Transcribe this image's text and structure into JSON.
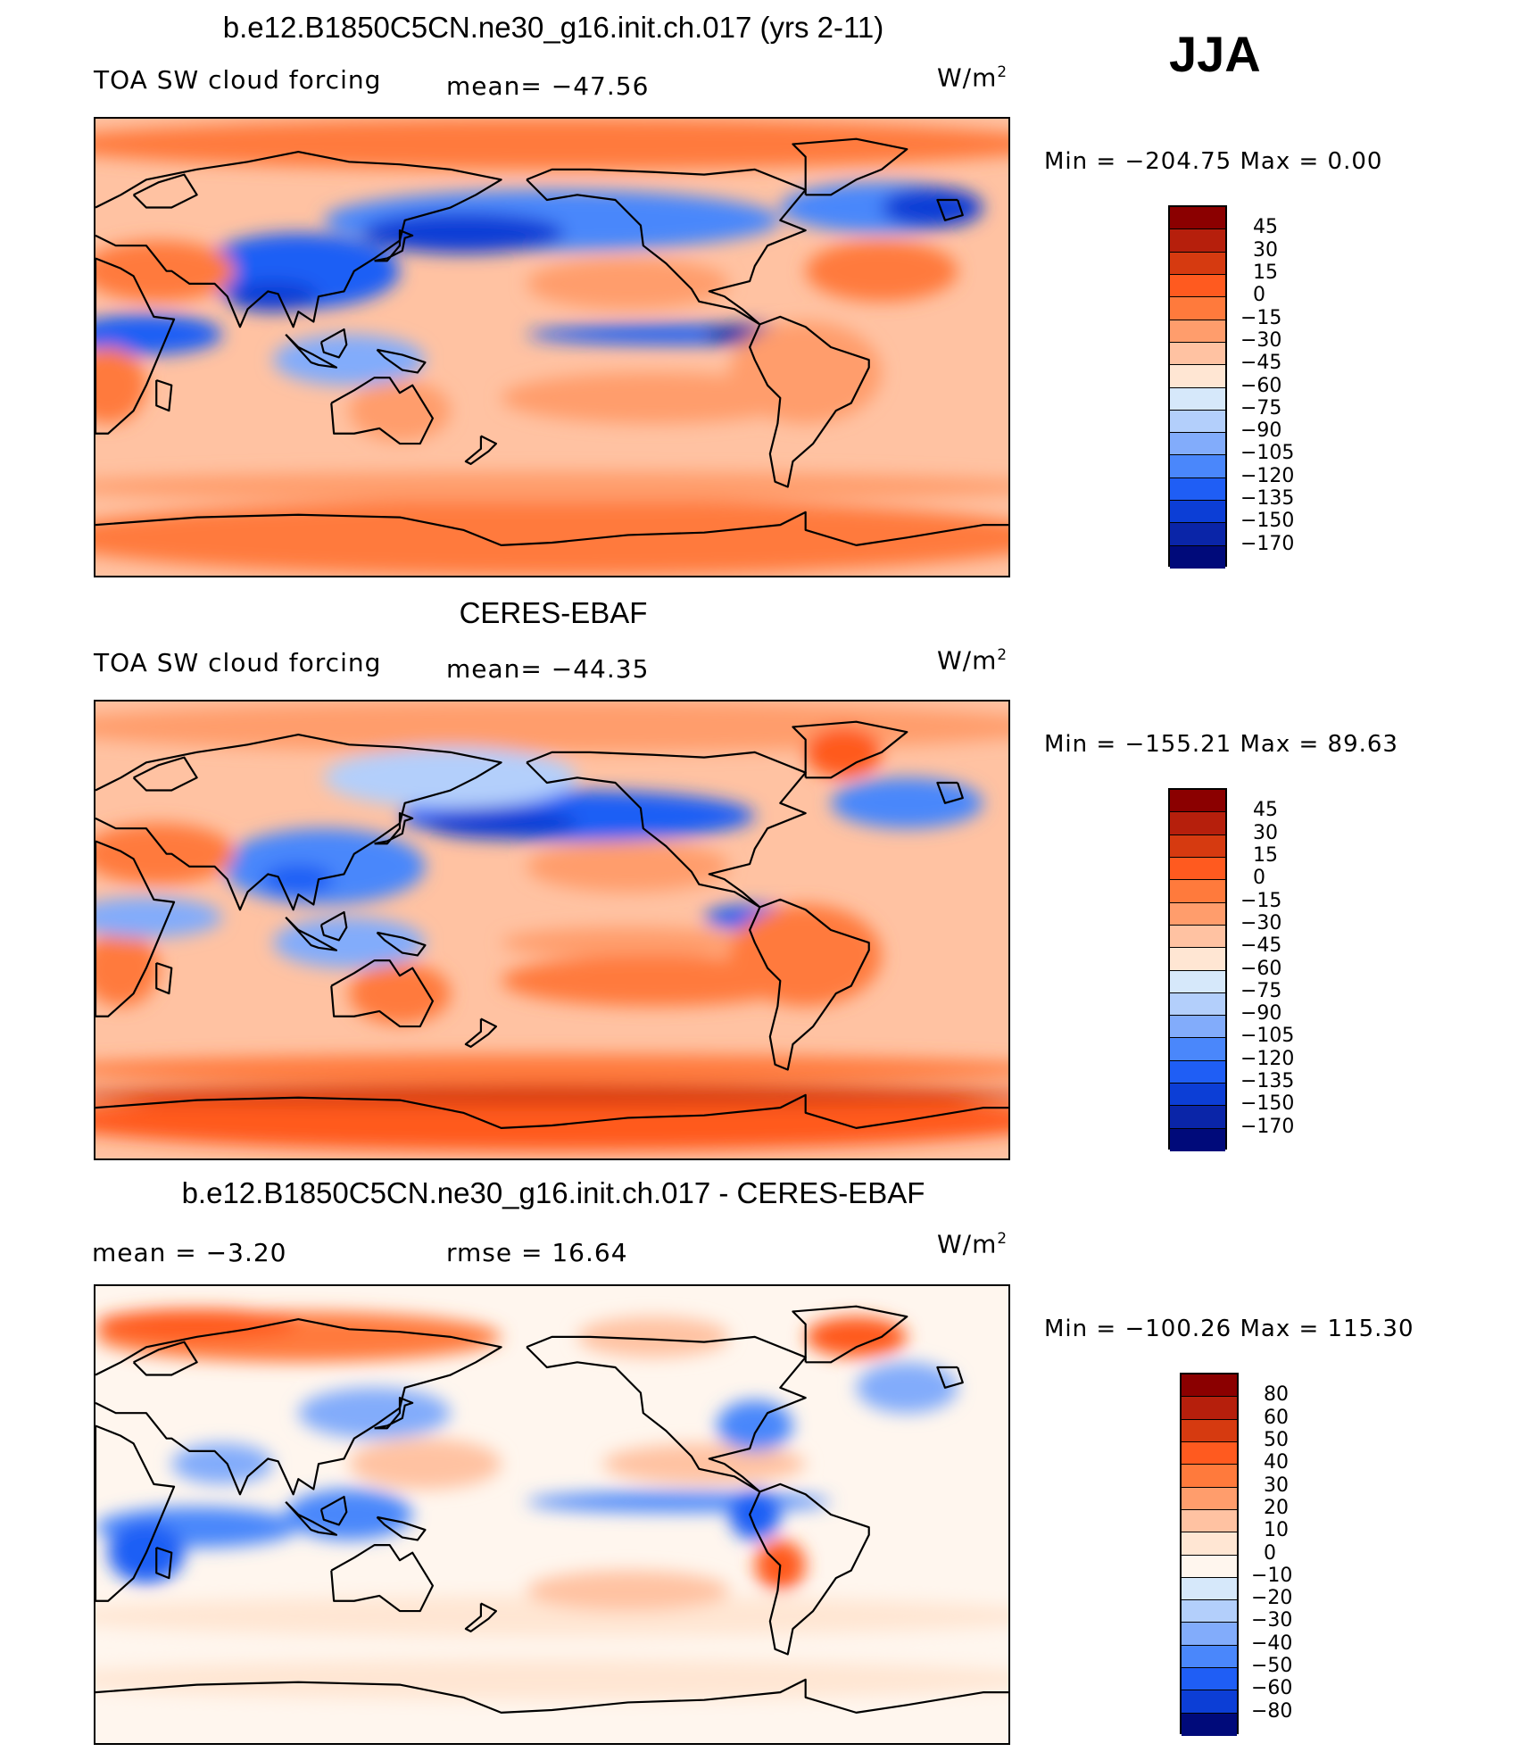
{
  "season": "JJA",
  "chart_data": [
    {
      "type": "heatmap",
      "title": "b.e12.B1850C5CN.ne30_g16.init.ch.017 (yrs 2-11)",
      "variable": "TOA SW cloud forcing",
      "mean_text": "mean=  −47.56",
      "units_text": "W/m",
      "units_sup": "2",
      "min_text": "Min  =  −204.75  Max  =      0.00",
      "colorbar_levels": [
        "45",
        "30",
        "15",
        "0",
        "−15",
        "−30",
        "−45",
        "−60",
        "−75",
        "−90",
        "−105",
        "−120",
        "−135",
        "−150",
        "−170"
      ],
      "colorbar_colors": [
        "#8b0000",
        "#b61f0c",
        "#d63a10",
        "#ff5a1f",
        "#ff7a3c",
        "#ff9d6c",
        "#ffc2a2",
        "#ffe6d3",
        "#d6e8fa",
        "#b3cffb",
        "#82acfb",
        "#4a87fb",
        "#1f5ef5",
        "#0c3ed6",
        "#0a25a8",
        "#000a7a"
      ]
    },
    {
      "type": "heatmap",
      "title": "CERES-EBAF",
      "variable": "TOA SW cloud forcing",
      "mean_text": "mean=  −44.35",
      "units_text": "W/m",
      "units_sup": "2",
      "min_text": "Min  =  −155.21  Max  =    89.63",
      "colorbar_levels": [
        "45",
        "30",
        "15",
        "0",
        "−15",
        "−30",
        "−45",
        "−60",
        "−75",
        "−90",
        "−105",
        "−120",
        "−135",
        "−150",
        "−170"
      ],
      "colorbar_colors": [
        "#8b0000",
        "#b61f0c",
        "#d63a10",
        "#ff5a1f",
        "#ff7a3c",
        "#ff9d6c",
        "#ffc2a2",
        "#ffe6d3",
        "#d6e8fa",
        "#b3cffb",
        "#82acfb",
        "#4a87fb",
        "#1f5ef5",
        "#0c3ed6",
        "#0a25a8",
        "#000a7a"
      ]
    },
    {
      "type": "heatmap",
      "title": "b.e12.B1850C5CN.ne30_g16.init.ch.017 - CERES-EBAF",
      "mean_text": "mean  =    −3.20",
      "rmse_text": "rmse  =    16.64",
      "units_text": "W/m",
      "units_sup": "2",
      "min_text": "Min  =  −100.26  Max  =  115.30",
      "colorbar_levels": [
        "80",
        "60",
        "50",
        "40",
        "30",
        "20",
        "10",
        "0",
        "−10",
        "−20",
        "−30",
        "−40",
        "−50",
        "−60",
        "−80"
      ],
      "colorbar_colors": [
        "#8b0000",
        "#b61f0c",
        "#d63a10",
        "#ff5a1f",
        "#ff7a3c",
        "#ff9d6c",
        "#ffc2a2",
        "#ffe6d3",
        "#fff6ee",
        "#d6e8fa",
        "#b3cffb",
        "#82acfb",
        "#4a87fb",
        "#1f5ef5",
        "#0c3ed6",
        "#000a7a"
      ]
    }
  ]
}
